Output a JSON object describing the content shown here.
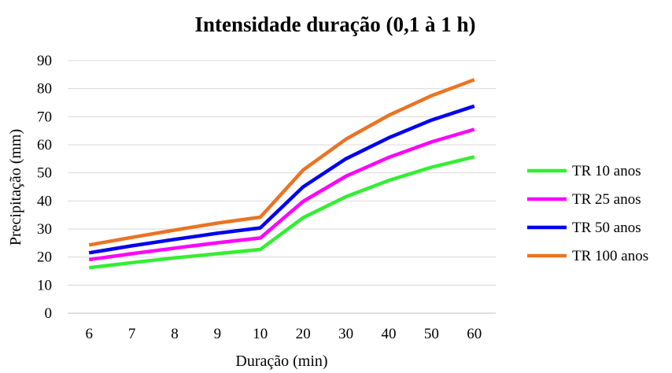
{
  "chart_data": {
    "type": "line",
    "title": "Intensidade duração (0,1 à 1 h)",
    "xlabel": "Duração (min)",
    "ylabel": "Precipitação (mm)",
    "categories": [
      "6",
      "7",
      "8",
      "9",
      "10",
      "20",
      "30",
      "40",
      "50",
      "60"
    ],
    "ylim": [
      0,
      90
    ],
    "yticks": [
      "0",
      "10",
      "20",
      "30",
      "40",
      "50",
      "60",
      "70",
      "80",
      "90"
    ],
    "grid": true,
    "legend_position": "right",
    "series": [
      {
        "name": "TR 10 anos",
        "color": "#33ee33",
        "values": [
          16.2,
          18.0,
          19.7,
          21.2,
          22.7,
          34.0,
          41.5,
          47.3,
          52.0,
          55.7
        ]
      },
      {
        "name": "TR 25 anos",
        "color": "#ff00ff",
        "values": [
          19.1,
          21.2,
          23.2,
          25.1,
          26.8,
          39.8,
          48.8,
          55.5,
          61.0,
          65.5
        ]
      },
      {
        "name": "TR 50 anos",
        "color": "#0000ee",
        "values": [
          21.5,
          24.0,
          26.3,
          28.5,
          30.4,
          45.0,
          55.0,
          62.5,
          68.8,
          73.8
        ]
      },
      {
        "name": "TR 100 anos",
        "color": "#e97423",
        "values": [
          24.3,
          27.0,
          29.6,
          32.1,
          34.2,
          51.0,
          62.0,
          70.5,
          77.5,
          83.2
        ]
      }
    ]
  }
}
